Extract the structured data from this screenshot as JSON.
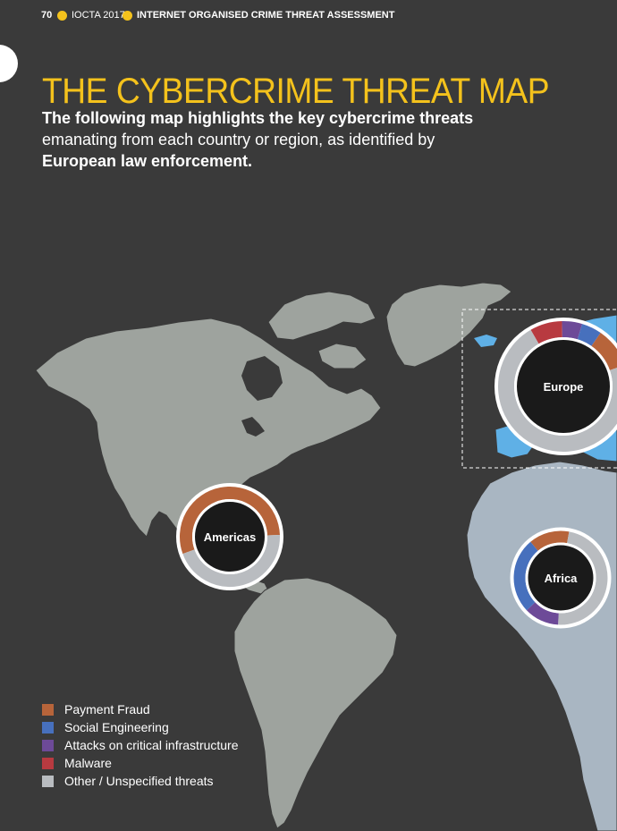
{
  "header": {
    "page_number": "70",
    "report": "IOCTA 2017",
    "section": "INTERNET ORGANISED CRIME THREAT ASSESSMENT"
  },
  "title": "THE CYBERCRIME THREAT MAP",
  "intro": {
    "line1": "The following map highlights the key cybercrime threats",
    "line2": "emanating from each country or region, as identified by",
    "line3": "European law enforcement."
  },
  "colors": {
    "background": "#3a3a3a",
    "accent": "#f4c21c",
    "land_americas": "#9ea39e",
    "land_africa": "#a9b6c2",
    "land_europe": "#5fb0e6",
    "payment_fraud": "#b7643a",
    "social_engineering": "#4770bd",
    "attacks_critical_infrastructure": "#6d4a98",
    "malware": "#b83a40",
    "other_unspecified": "#b9bcc0"
  },
  "legend": [
    {
      "label": "Payment Fraud",
      "color": "#b7643a"
    },
    {
      "label": "Social Engineering",
      "color": "#4770bd"
    },
    {
      "label": "Attacks on critical infrastructure",
      "color": "#6d4a98"
    },
    {
      "label": "Malware",
      "color": "#b83a40"
    },
    {
      "label": "Other / Unspecified threats",
      "color": "#b9bcc0"
    }
  ],
  "regions": [
    {
      "name": "Americas",
      "segments": [
        {
          "category": "Payment Fraud",
          "share": 0.55
        },
        {
          "category": "Other / Unspecified threats",
          "share": 0.45
        }
      ]
    },
    {
      "name": "Europe",
      "segments": [
        {
          "category": "Malware",
          "share": 0.08
        },
        {
          "category": "Attacks on critical infrastructure",
          "share": 0.05
        },
        {
          "category": "Social Engineering",
          "share": 0.05
        },
        {
          "category": "Payment Fraud",
          "share": 0.1
        },
        {
          "category": "Other / Unspecified threats",
          "share": 0.72
        }
      ]
    },
    {
      "name": "Africa",
      "segments": [
        {
          "category": "Payment Fraud",
          "share": 0.14
        },
        {
          "category": "Other / Unspecified threats",
          "share": 0.48
        },
        {
          "category": "Attacks on critical infrastructure",
          "share": 0.12
        },
        {
          "category": "Social Engineering",
          "share": 0.26
        }
      ]
    }
  ]
}
